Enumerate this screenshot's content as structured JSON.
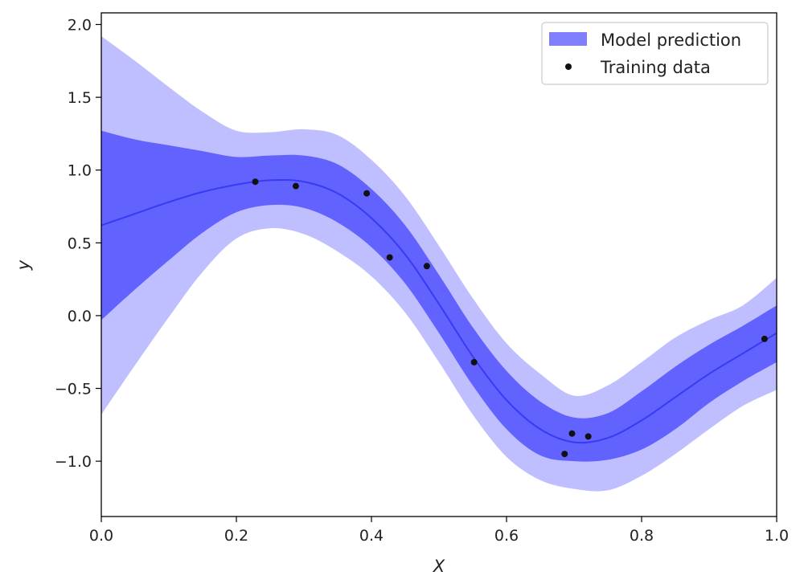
{
  "chart_data": {
    "type": "line",
    "title": "",
    "xlabel": "X",
    "ylabel": "y",
    "xlim": [
      0.0,
      1.0
    ],
    "ylim": [
      -1.38,
      2.08
    ],
    "xticks": [
      0.0,
      0.2,
      0.4,
      0.6,
      0.8,
      1.0
    ],
    "xtick_labels": [
      "0.0",
      "0.2",
      "0.4",
      "0.6",
      "0.8",
      "1.0"
    ],
    "yticks": [
      -1.0,
      -0.5,
      0.0,
      0.5,
      1.0,
      1.5,
      2.0
    ],
    "ytick_labels": [
      "−1.0",
      "−0.5",
      "0.0",
      "0.5",
      "1.0",
      "1.5",
      "2.0"
    ],
    "grid": false,
    "legend": {
      "position": "top-right",
      "entries": [
        "Model prediction",
        "Training data"
      ]
    },
    "colors": {
      "mean_line": "#3a3af0",
      "inner_band": "#6262ff",
      "outer_band": "#bfbfff",
      "legend_patch": "#8080ff",
      "points": "#111111",
      "axes": "#000000"
    },
    "prediction": {
      "name": "Model prediction",
      "x": [
        0.0,
        0.05,
        0.1,
        0.15,
        0.2,
        0.25,
        0.3,
        0.35,
        0.4,
        0.45,
        0.5,
        0.55,
        0.6,
        0.65,
        0.7,
        0.75,
        0.8,
        0.85,
        0.9,
        0.95,
        1.0
      ],
      "mean": [
        0.62,
        0.7,
        0.78,
        0.85,
        0.9,
        0.93,
        0.92,
        0.84,
        0.67,
        0.42,
        0.08,
        -0.28,
        -0.58,
        -0.78,
        -0.87,
        -0.84,
        -0.72,
        -0.56,
        -0.4,
        -0.26,
        -0.12
      ],
      "lower_1": [
        -0.03,
        0.18,
        0.38,
        0.57,
        0.71,
        0.76,
        0.74,
        0.64,
        0.47,
        0.22,
        -0.12,
        -0.48,
        -0.78,
        -0.96,
        -1.0,
        -0.99,
        -0.92,
        -0.78,
        -0.6,
        -0.45,
        -0.32
      ],
      "upper_1": [
        1.27,
        1.21,
        1.17,
        1.13,
        1.09,
        1.1,
        1.1,
        1.04,
        0.87,
        0.62,
        0.28,
        -0.08,
        -0.38,
        -0.59,
        -0.7,
        -0.67,
        -0.52,
        -0.35,
        -0.2,
        -0.07,
        0.07
      ],
      "lower_2": [
        -0.68,
        -0.34,
        -0.01,
        0.3,
        0.53,
        0.6,
        0.56,
        0.44,
        0.27,
        0.02,
        -0.32,
        -0.68,
        -0.97,
        -1.13,
        -1.19,
        -1.2,
        -1.1,
        -0.95,
        -0.78,
        -0.62,
        -0.51
      ],
      "upper_2": [
        1.92,
        1.75,
        1.57,
        1.4,
        1.27,
        1.26,
        1.28,
        1.24,
        1.07,
        0.82,
        0.48,
        0.12,
        -0.19,
        -0.4,
        -0.55,
        -0.48,
        -0.32,
        -0.15,
        -0.03,
        0.07,
        0.26
      ]
    },
    "training_data": {
      "name": "Training data",
      "x": [
        0.228,
        0.288,
        0.393,
        0.427,
        0.482,
        0.552,
        0.686,
        0.697,
        0.721,
        0.982
      ],
      "y": [
        0.92,
        0.89,
        0.84,
        0.4,
        0.34,
        -0.32,
        -0.95,
        -0.81,
        -0.83,
        -0.16
      ]
    }
  }
}
